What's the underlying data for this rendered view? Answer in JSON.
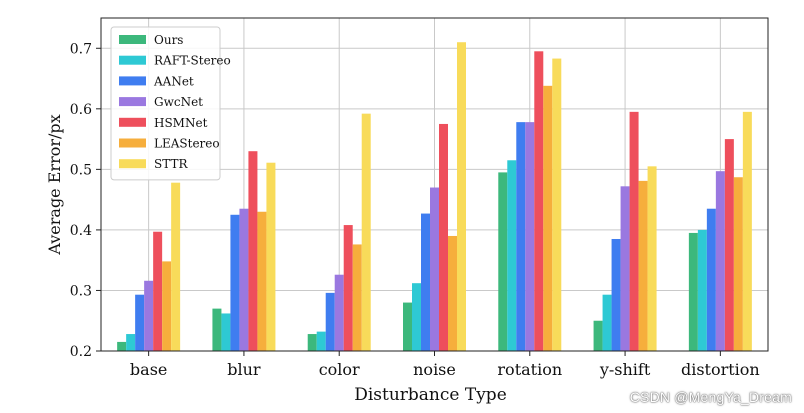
{
  "chart_data": {
    "type": "bar",
    "title": "",
    "xlabel": "Disturbance Type",
    "ylabel": "Average Error/px",
    "ylim": [
      0.2,
      0.75
    ],
    "yticks": [
      "0.2",
      "0.3",
      "0.4",
      "0.5",
      "0.6",
      "0.7"
    ],
    "grid": true,
    "legend_position": "top-left",
    "categories": [
      "base",
      "blur",
      "color",
      "noise",
      "rotation",
      "y-shift",
      "distortion"
    ],
    "series": [
      {
        "name": "Ours",
        "color": "#3cb87c",
        "values": [
          0.215,
          0.27,
          0.228,
          0.28,
          0.495,
          0.25,
          0.395
        ]
      },
      {
        "name": "RAFT-Stereo",
        "color": "#2ec9d4",
        "values": [
          0.228,
          0.262,
          0.232,
          0.312,
          0.515,
          0.293,
          0.4
        ]
      },
      {
        "name": "AANet",
        "color": "#3f7df0",
        "values": [
          0.293,
          0.425,
          0.296,
          0.427,
          0.578,
          0.385,
          0.435
        ]
      },
      {
        "name": "GwcNet",
        "color": "#9a78e0",
        "values": [
          0.316,
          0.435,
          0.326,
          0.47,
          0.578,
          0.472,
          0.497
        ]
      },
      {
        "name": "HSMNet",
        "color": "#ee4f5c",
        "values": [
          0.397,
          0.53,
          0.408,
          0.575,
          0.695,
          0.595,
          0.55
        ]
      },
      {
        "name": "LEAStereo",
        "color": "#f6ae3c",
        "values": [
          0.348,
          0.43,
          0.376,
          0.39,
          0.638,
          0.481,
          0.487
        ]
      },
      {
        "name": "STTR",
        "color": "#f8db5a",
        "values": [
          0.478,
          0.511,
          0.592,
          0.71,
          0.683,
          0.505,
          0.595
        ]
      }
    ]
  },
  "watermark": "CSDN @MengYa_Dream"
}
